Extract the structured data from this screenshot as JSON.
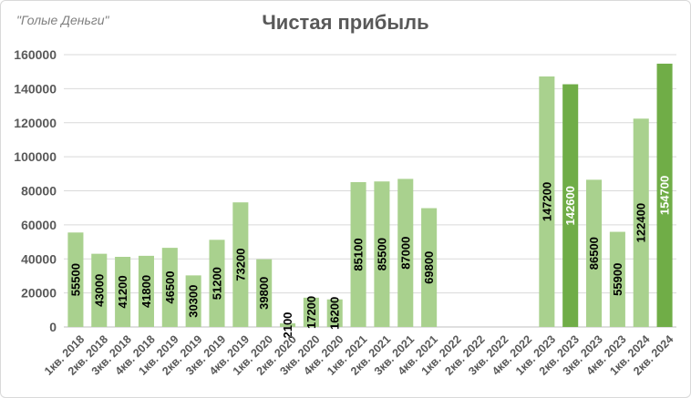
{
  "watermark": "\"Голые Деньги\"",
  "colors": {
    "light": "#a9d18e",
    "dark": "#70ad47",
    "grid": "#d9d9d9",
    "axis_text": "#595959",
    "label_text": "#000000",
    "label_text_on_dark": "#ffffff"
  },
  "chart_data": {
    "type": "bar",
    "title": "Чистая прибыль",
    "xlabel": "",
    "ylabel": "",
    "ylim": [
      0,
      160000
    ],
    "yticks": [
      0,
      20000,
      40000,
      60000,
      80000,
      100000,
      120000,
      140000,
      160000
    ],
    "grid": true,
    "legend": "none",
    "categories": [
      "1кв. 2018",
      "2кв. 2018",
      "3кв. 2018",
      "4кв. 2018",
      "1кв. 2019",
      "2кв. 2019",
      "3кв. 2019",
      "4кв. 2019",
      "1кв. 2020",
      "2кв. 2020",
      "3кв. 2020",
      "4кв. 2020",
      "1кв. 2021",
      "2кв. 2021",
      "3кв. 2021",
      "4кв. 2021",
      "1кв. 2022",
      "2кв. 2022",
      "3кв. 2022",
      "4кв. 2022",
      "1кв. 2023",
      "2кв. 2023",
      "3кв. 2023",
      "4кв. 2023",
      "1кв. 2024",
      "2кв. 2024"
    ],
    "values": [
      55500,
      43000,
      41200,
      41800,
      46500,
      30300,
      51200,
      73200,
      39800,
      2100,
      17200,
      16200,
      85100,
      85500,
      87000,
      69800,
      null,
      null,
      null,
      null,
      147200,
      142600,
      86500,
      55900,
      122400,
      154700
    ],
    "highlighted": [
      21,
      25
    ]
  }
}
